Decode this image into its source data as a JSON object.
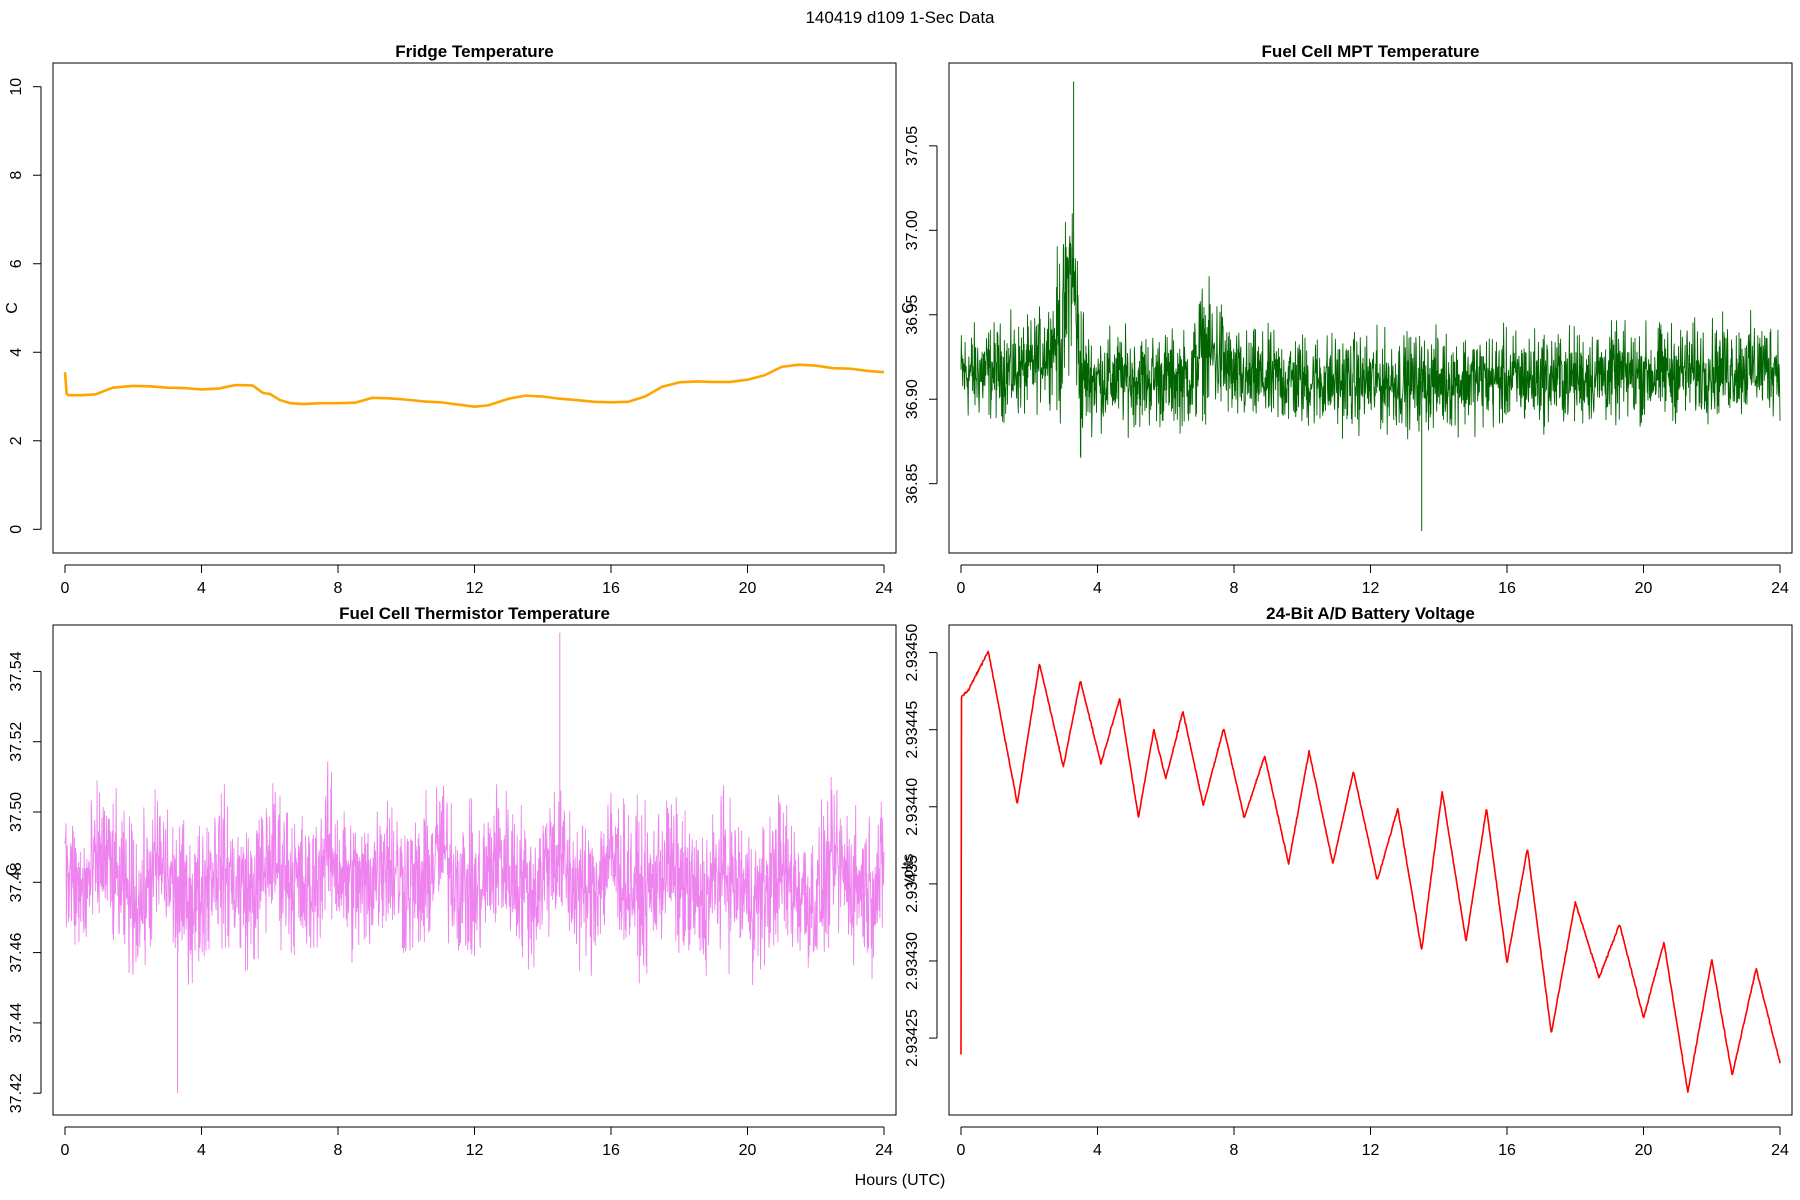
{
  "figure": {
    "suptitle": "140419   d109   1-Sec Data",
    "xlabel": "Hours (UTC)"
  },
  "chart_data": [
    {
      "id": "fridge",
      "type": "line",
      "title": "Fridge Temperature",
      "xlabel": "",
      "ylabel": "C",
      "color": "#FFA500",
      "xlim": [
        0,
        24
      ],
      "ylim": [
        -0.4,
        10.4
      ],
      "xticks": [
        0,
        4,
        8,
        12,
        16,
        20,
        24
      ],
      "yticks": [
        0,
        2,
        4,
        6,
        8,
        10
      ],
      "ytick_labels": [
        "0",
        "2",
        "4",
        "6",
        "8",
        "10"
      ],
      "noise": 0,
      "series": [
        {
          "name": "Fridge Temperature",
          "x": [
            0,
            0.05,
            0.1,
            0.5,
            0.9,
            1.4,
            2.0,
            2.5,
            3.0,
            3.5,
            4.0,
            4.5,
            5.0,
            5.5,
            5.8,
            6.0,
            6.3,
            6.6,
            7.0,
            7.5,
            8.0,
            8.5,
            9.0,
            9.5,
            10.0,
            10.5,
            11.0,
            11.5,
            12.0,
            12.4,
            13.0,
            13.5,
            14.0,
            14.5,
            15.0,
            15.5,
            16.0,
            16.5,
            17.0,
            17.5,
            18.0,
            18.5,
            19.0,
            19.5,
            20.0,
            20.5,
            21.0,
            21.5,
            22.0,
            22.5,
            23.0,
            23.5,
            24.0
          ],
          "values": [
            3.55,
            3.06,
            3.03,
            3.03,
            3.05,
            3.2,
            3.24,
            3.23,
            3.2,
            3.19,
            3.16,
            3.18,
            3.26,
            3.25,
            3.08,
            3.06,
            2.92,
            2.85,
            2.83,
            2.85,
            2.85,
            2.86,
            2.97,
            2.96,
            2.93,
            2.89,
            2.87,
            2.82,
            2.77,
            2.8,
            2.95,
            3.02,
            3.0,
            2.95,
            2.92,
            2.88,
            2.87,
            2.88,
            3.0,
            3.22,
            3.32,
            3.34,
            3.33,
            3.33,
            3.38,
            3.48,
            3.67,
            3.72,
            3.7,
            3.64,
            3.63,
            3.58,
            3.55
          ]
        }
      ]
    },
    {
      "id": "mpt",
      "type": "line",
      "title": "Fuel Cell MPT Temperature",
      "xlabel": "",
      "ylabel": "C",
      "color": "#006400",
      "xlim": [
        0,
        24
      ],
      "ylim": [
        36.8125,
        37.0955
      ],
      "xticks": [
        0,
        4,
        8,
        12,
        16,
        20,
        24
      ],
      "yticks": [
        36.85,
        36.9,
        36.95,
        37.0,
        37.05
      ],
      "ytick_labels": [
        "36.85",
        "36.90",
        "36.95",
        "37.00",
        "37.05"
      ],
      "noise": 0.04,
      "series": [
        {
          "name": "Fuel Cell MPT Temperature",
          "x": [
            0,
            2,
            3.0,
            3.2,
            3.35,
            3.5,
            4,
            6.8,
            7.0,
            7.6,
            8,
            12,
            16,
            20,
            24
          ],
          "values": [
            36.915,
            36.918,
            36.94,
            36.98,
            36.96,
            36.912,
            36.912,
            36.912,
            36.93,
            36.925,
            36.912,
            36.91,
            36.912,
            36.915,
            36.92
          ]
        }
      ],
      "extremes": {
        "max": 37.088,
        "min": 36.822
      }
    },
    {
      "id": "thermistor",
      "type": "line",
      "title": "Fuel Cell Thermistor Temperature",
      "xlabel": "",
      "ylabel": "C",
      "color": "#EE82EE",
      "xlim": [
        0,
        24
      ],
      "ylim": [
        37.4155,
        37.5515
      ],
      "xticks": [
        0,
        4,
        8,
        12,
        16,
        20,
        24
      ],
      "yticks": [
        37.42,
        37.44,
        37.46,
        37.48,
        37.5,
        37.52,
        37.54
      ],
      "ytick_labels": [
        "37.42",
        "37.44",
        "37.46",
        "37.48",
        "37.50",
        "37.52",
        "37.54"
      ],
      "noise": 0.03,
      "series": [
        {
          "name": "Fuel Cell Thermistor Temperature",
          "x": [
            0,
            0.5,
            1.1,
            1.65,
            2.2,
            2.75,
            3.3,
            3.85,
            4.4,
            4.95,
            5.5,
            6.05,
            6.6,
            7.15,
            7.7,
            8.25,
            8.8,
            9.35,
            9.9,
            10.45,
            11.0,
            11.55,
            12.1,
            12.65,
            13.2,
            13.75,
            14.3,
            14.85,
            15.4,
            15.95,
            16.5,
            17.05,
            17.6,
            18.15,
            18.7,
            19.25,
            19.8,
            20.35,
            20.9,
            21.45,
            22.0,
            22.55,
            23.1,
            23.65,
            24.0
          ],
          "values": [
            37.483,
            37.476,
            37.488,
            37.478,
            37.474,
            37.486,
            37.476,
            37.474,
            37.486,
            37.48,
            37.476,
            37.488,
            37.482,
            37.476,
            37.49,
            37.48,
            37.478,
            37.488,
            37.48,
            37.478,
            37.49,
            37.48,
            37.476,
            37.488,
            37.482,
            37.476,
            37.49,
            37.48,
            37.476,
            37.488,
            37.48,
            37.476,
            37.486,
            37.478,
            37.474,
            37.484,
            37.478,
            37.474,
            37.484,
            37.478,
            37.474,
            37.486,
            37.48,
            37.478,
            37.482
          ]
        }
      ],
      "extremes": {
        "max": 37.551,
        "min": 37.42
      }
    },
    {
      "id": "battery",
      "type": "line",
      "title": "24-Bit A/D Battery Voltage",
      "xlabel": "",
      "ylabel": "volts",
      "color": "#FF0000",
      "xlim": [
        0,
        24
      ],
      "ylim": [
        2.934204,
        2.934514
      ],
      "xticks": [
        0,
        4,
        8,
        12,
        16,
        20,
        24
      ],
      "yticks": [
        2.93425,
        2.9343,
        2.93435,
        2.9344,
        2.93445,
        2.9345
      ],
      "ytick_labels": [
        "2.93425",
        "2.93430",
        "2.93435",
        "2.93440",
        "2.93445",
        "2.93450"
      ],
      "noise": 1.2e-06,
      "series": [
        {
          "name": "24-Bit A/D Battery Voltage",
          "x": [
            0,
            0.01,
            0.03,
            0.2,
            0.8,
            1.65,
            2.3,
            3.0,
            3.5,
            4.1,
            4.65,
            5.2,
            5.65,
            6.0,
            6.5,
            7.1,
            7.7,
            8.3,
            8.9,
            9.6,
            10.2,
            10.9,
            11.5,
            12.2,
            12.8,
            13.5,
            14.1,
            14.8,
            15.4,
            16.0,
            16.6,
            17.3,
            18.0,
            18.7,
            19.3,
            20.0,
            20.6,
            21.3,
            22.0,
            22.6,
            23.3,
            24.0
          ],
          "values": [
            2.93424,
            2.93447,
            2.934472,
            2.934475,
            2.934501,
            2.934402,
            2.934493,
            2.934426,
            2.934482,
            2.934428,
            2.93447,
            2.934393,
            2.93445,
            2.934418,
            2.934462,
            2.934401,
            2.934451,
            2.934393,
            2.934433,
            2.934363,
            2.934436,
            2.934363,
            2.934423,
            2.934352,
            2.934399,
            2.934307,
            2.93441,
            2.934313,
            2.934399,
            2.934299,
            2.934373,
            2.934253,
            2.934338,
            2.934289,
            2.934324,
            2.934263,
            2.934312,
            2.934215,
            2.934301,
            2.934226,
            2.934295,
            2.934234
          ]
        }
      ]
    }
  ]
}
